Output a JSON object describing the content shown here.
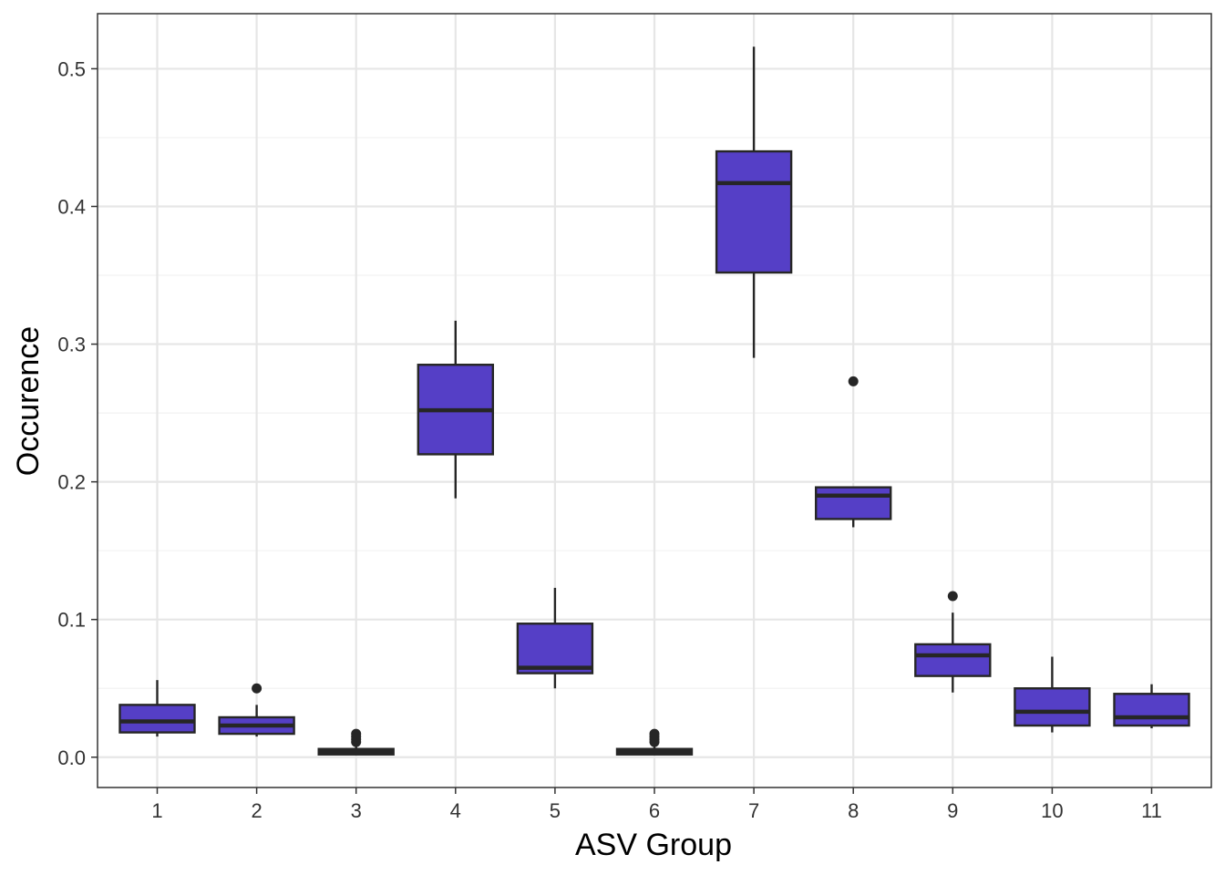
{
  "chart_data": {
    "type": "box",
    "xlabel": "ASV Group",
    "ylabel": "Occurence",
    "categories": [
      "1",
      "2",
      "3",
      "4",
      "5",
      "6",
      "7",
      "8",
      "9",
      "10",
      "11"
    ],
    "ylim": [
      -0.022,
      0.54
    ],
    "yticks": [
      0.0,
      0.1,
      0.2,
      0.3,
      0.4,
      0.5
    ],
    "ytick_labels": [
      "0.0",
      "0.1",
      "0.2",
      "0.3",
      "0.4",
      "0.5"
    ],
    "grid": true,
    "legend": "none",
    "boxes": [
      {
        "category": "1",
        "whisker_low": 0.015,
        "q1": 0.018,
        "median": 0.026,
        "q3": 0.038,
        "whisker_high": 0.056,
        "outliers": []
      },
      {
        "category": "2",
        "whisker_low": 0.015,
        "q1": 0.017,
        "median": 0.023,
        "q3": 0.029,
        "whisker_high": 0.038,
        "outliers": [
          0.05
        ]
      },
      {
        "category": "3",
        "whisker_low": 0.002,
        "q1": 0.002,
        "median": 0.004,
        "q3": 0.006,
        "whisker_high": 0.008,
        "outliers": [
          0.011,
          0.013,
          0.015,
          0.017
        ]
      },
      {
        "category": "4",
        "whisker_low": 0.188,
        "q1": 0.22,
        "median": 0.252,
        "q3": 0.285,
        "whisker_high": 0.317,
        "outliers": []
      },
      {
        "category": "5",
        "whisker_low": 0.05,
        "q1": 0.061,
        "median": 0.065,
        "q3": 0.097,
        "whisker_high": 0.123,
        "outliers": []
      },
      {
        "category": "6",
        "whisker_low": 0.002,
        "q1": 0.002,
        "median": 0.004,
        "q3": 0.006,
        "whisker_high": 0.008,
        "outliers": [
          0.011,
          0.013,
          0.015,
          0.017
        ]
      },
      {
        "category": "7",
        "whisker_low": 0.29,
        "q1": 0.352,
        "median": 0.417,
        "q3": 0.44,
        "whisker_high": 0.516,
        "outliers": []
      },
      {
        "category": "8",
        "whisker_low": 0.167,
        "q1": 0.173,
        "median": 0.19,
        "q3": 0.196,
        "whisker_high": 0.196,
        "outliers": [
          0.273
        ]
      },
      {
        "category": "9",
        "whisker_low": 0.047,
        "q1": 0.059,
        "median": 0.074,
        "q3": 0.082,
        "whisker_high": 0.105,
        "outliers": [
          0.117
        ]
      },
      {
        "category": "10",
        "whisker_low": 0.018,
        "q1": 0.023,
        "median": 0.033,
        "q3": 0.05,
        "whisker_high": 0.073,
        "outliers": []
      },
      {
        "category": "11",
        "whisker_low": 0.021,
        "q1": 0.023,
        "median": 0.029,
        "q3": 0.046,
        "whisker_high": 0.053,
        "outliers": []
      }
    ],
    "colors": {
      "box_fill": "#553fc6",
      "box_line": "#262626",
      "outlier": "#262626",
      "grid_major": "#e6e6e6",
      "grid_minor": "#f2f2f2",
      "panel_border": "#333333"
    }
  }
}
